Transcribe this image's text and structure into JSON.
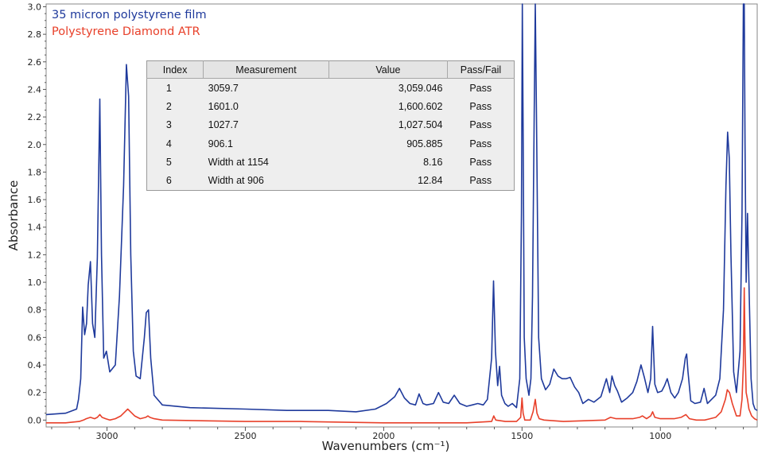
{
  "chart_data": {
    "type": "line",
    "title": "",
    "xlabel": "Wavenumbers (cm⁻¹)",
    "ylabel": "Absorbance",
    "xlim": [
      3220,
      650
    ],
    "ylim": [
      -0.05,
      3.02
    ],
    "x_reversed": true,
    "x_ticks": [
      3000,
      2500,
      2000,
      1500,
      1000
    ],
    "y_ticks": [
      0.0,
      0.2,
      0.4,
      0.6,
      0.8,
      1.0,
      1.2,
      1.4,
      1.6,
      1.8,
      2.0,
      2.2,
      2.4,
      2.6,
      2.8,
      3.0
    ],
    "y_tick_labels": [
      "0.0",
      "0.2",
      "0.4",
      "0.6",
      "0.8",
      "1.0",
      "1.2",
      "1.4",
      "1.6",
      "1.8",
      "2.0",
      "2.2",
      "2.4",
      "2.6",
      "2.8",
      "3.0"
    ],
    "grid": false,
    "legend_position": "top-left",
    "series": [
      {
        "name": "35 micron polystyrene film",
        "color": "#1f3a9c",
        "x": [
          3220,
          3150,
          3110,
          3103,
          3095,
          3088,
          3081,
          3074,
          3068,
          3060,
          3052,
          3044,
          3035,
          3026,
          3020,
          3012,
          3002,
          2990,
          2970,
          2955,
          2940,
          2930,
          2922,
          2914,
          2905,
          2895,
          2880,
          2865,
          2858,
          2850,
          2842,
          2830,
          2800,
          2700,
          2500,
          2350,
          2300,
          2200,
          2100,
          2030,
          1990,
          1960,
          1943,
          1925,
          1905,
          1885,
          1872,
          1858,
          1845,
          1820,
          1802,
          1785,
          1765,
          1745,
          1725,
          1700,
          1680,
          1660,
          1640,
          1625,
          1610,
          1603,
          1596,
          1588,
          1581,
          1574,
          1562,
          1550,
          1535,
          1520,
          1508,
          1502,
          1499,
          1496,
          1492,
          1485,
          1475,
          1468,
          1462,
          1456,
          1452,
          1448,
          1440,
          1430,
          1415,
          1400,
          1385,
          1370,
          1355,
          1340,
          1326,
          1310,
          1295,
          1280,
          1260,
          1240,
          1215,
          1195,
          1183,
          1175,
          1165,
          1155,
          1140,
          1120,
          1100,
          1085,
          1070,
          1058,
          1045,
          1035,
          1028,
          1020,
          1010,
          995,
          985,
          975,
          962,
          948,
          935,
          920,
          910,
          905,
          900,
          890,
          875,
          855,
          842,
          830,
          815,
          800,
          785,
          772,
          763,
          757,
          751,
          745,
          735,
          725,
          712,
          705,
          700,
          697,
          694,
          690,
          685,
          680,
          672,
          665,
          658,
          650
        ],
        "y": [
          0.04,
          0.05,
          0.08,
          0.15,
          0.3,
          0.82,
          0.62,
          0.7,
          0.98,
          1.15,
          0.7,
          0.6,
          1.18,
          2.33,
          1.2,
          0.45,
          0.5,
          0.35,
          0.4,
          0.9,
          1.7,
          2.58,
          2.35,
          1.2,
          0.5,
          0.32,
          0.3,
          0.6,
          0.78,
          0.8,
          0.45,
          0.18,
          0.11,
          0.09,
          0.08,
          0.07,
          0.07,
          0.07,
          0.06,
          0.08,
          0.12,
          0.17,
          0.23,
          0.16,
          0.12,
          0.11,
          0.19,
          0.12,
          0.11,
          0.12,
          0.2,
          0.13,
          0.12,
          0.18,
          0.12,
          0.1,
          0.11,
          0.12,
          0.11,
          0.15,
          0.45,
          1.01,
          0.5,
          0.25,
          0.39,
          0.18,
          0.12,
          0.1,
          0.12,
          0.09,
          0.3,
          1.5,
          3.02,
          2.1,
          0.6,
          0.3,
          0.18,
          0.3,
          0.9,
          2.2,
          3.02,
          2.26,
          0.6,
          0.3,
          0.22,
          0.26,
          0.37,
          0.32,
          0.3,
          0.3,
          0.31,
          0.24,
          0.2,
          0.12,
          0.15,
          0.13,
          0.17,
          0.3,
          0.2,
          0.32,
          0.25,
          0.21,
          0.13,
          0.16,
          0.2,
          0.28,
          0.4,
          0.31,
          0.2,
          0.3,
          0.68,
          0.26,
          0.2,
          0.21,
          0.25,
          0.3,
          0.2,
          0.16,
          0.2,
          0.3,
          0.45,
          0.48,
          0.35,
          0.14,
          0.12,
          0.13,
          0.23,
          0.12,
          0.15,
          0.18,
          0.3,
          0.8,
          1.7,
          2.09,
          1.9,
          1.2,
          0.35,
          0.2,
          0.5,
          1.5,
          3.02,
          3.02,
          2.0,
          1.0,
          1.5,
          1.0,
          0.3,
          0.12,
          0.08,
          0.07
        ]
      },
      {
        "name": "Polystyrene Diamond ATR",
        "color": "#e8402a",
        "x": [
          3220,
          3150,
          3100,
          3085,
          3075,
          3060,
          3045,
          3035,
          3026,
          3018,
          3005,
          2990,
          2970,
          2950,
          2935,
          2925,
          2915,
          2900,
          2880,
          2860,
          2852,
          2845,
          2830,
          2800,
          2500,
          2300,
          2000,
          1700,
          1610,
          1602,
          1595,
          1560,
          1520,
          1505,
          1500,
          1496,
          1490,
          1470,
          1460,
          1452,
          1446,
          1438,
          1420,
          1350,
          1200,
          1180,
          1160,
          1100,
          1075,
          1065,
          1050,
          1035,
          1028,
          1020,
          1000,
          950,
          925,
          908,
          895,
          870,
          840,
          800,
          780,
          765,
          758,
          750,
          740,
          725,
          712,
          705,
          700,
          697,
          694,
          690,
          685,
          680,
          670,
          660,
          650
        ],
        "y": [
          -0.02,
          -0.02,
          -0.01,
          0.0,
          0.01,
          0.02,
          0.01,
          0.02,
          0.04,
          0.02,
          0.01,
          0.0,
          0.01,
          0.03,
          0.06,
          0.08,
          0.06,
          0.03,
          0.01,
          0.02,
          0.03,
          0.02,
          0.01,
          0.0,
          -0.01,
          -0.01,
          -0.02,
          -0.02,
          -0.01,
          0.03,
          0.0,
          -0.01,
          -0.01,
          0.02,
          0.16,
          0.05,
          0.0,
          0.0,
          0.06,
          0.15,
          0.05,
          0.01,
          0.0,
          -0.01,
          0.0,
          0.02,
          0.01,
          0.01,
          0.02,
          0.03,
          0.01,
          0.03,
          0.06,
          0.02,
          0.01,
          0.01,
          0.02,
          0.04,
          0.01,
          0.0,
          0.0,
          0.02,
          0.06,
          0.15,
          0.22,
          0.2,
          0.12,
          0.03,
          0.03,
          0.15,
          0.4,
          0.96,
          0.55,
          0.2,
          0.15,
          0.08,
          0.03,
          0.01,
          0.0
        ]
      }
    ]
  },
  "legend": {
    "series1": "35 micron polystyrene film",
    "series2": "Polystyrene Diamond ATR",
    "series1_color": "#1f3a9c",
    "series2_color": "#e8402a"
  },
  "results_table": {
    "headers": {
      "index": "Index",
      "measurement": "Measurement",
      "value": "Value",
      "pass_fail": "Pass/Fail"
    },
    "rows": [
      {
        "index": "1",
        "measurement": "3059.7",
        "value": "3,059.046",
        "pass_fail": "Pass"
      },
      {
        "index": "2",
        "measurement": "1601.0",
        "value": "1,600.602",
        "pass_fail": "Pass"
      },
      {
        "index": "3",
        "measurement": "1027.7",
        "value": "1,027.504",
        "pass_fail": "Pass"
      },
      {
        "index": "4",
        "measurement": "906.1",
        "value": "905.885",
        "pass_fail": "Pass"
      },
      {
        "index": "5",
        "measurement": "Width at 1154",
        "value": "8.16",
        "pass_fail": "Pass"
      },
      {
        "index": "6",
        "measurement": "Width at 906",
        "value": "12.84",
        "pass_fail": "Pass"
      }
    ]
  }
}
